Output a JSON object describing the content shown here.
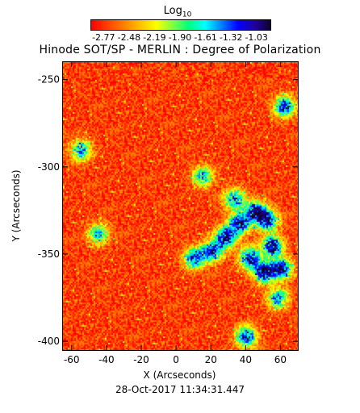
{
  "colorbar": {
    "title": "Log",
    "title_sub": "10",
    "ticks": [
      "-2.77",
      "-2.48",
      "-2.19",
      "-1.90",
      "-1.61",
      "-1.32",
      "-1.03"
    ],
    "range": [
      -2.92,
      -0.88
    ],
    "colors": [
      "#ff0000",
      "#ff4000",
      "#ff8000",
      "#ffc000",
      "#ffff00",
      "#80ff40",
      "#00ff80",
      "#00ffff",
      "#0080ff",
      "#0000ff",
      "#2000a0",
      "#100030"
    ]
  },
  "chart_data": {
    "type": "heatmap",
    "title": "Hinode SOT/SP - MERLIN : Degree of Polarization",
    "xlabel": "X (Arcseconds)",
    "ylabel": "Y (Arcseconds)",
    "xlim": [
      -65,
      70
    ],
    "ylim": [
      -405,
      -240
    ],
    "xticks": [
      -60,
      -40,
      -20,
      0,
      20,
      40,
      60
    ],
    "yticks": [
      -250,
      -300,
      -350,
      -400
    ],
    "xtick_labels": [
      "-60",
      "-40",
      "-20",
      "0",
      "20",
      "40",
      "60"
    ],
    "ytick_labels": [
      "-250",
      "-300",
      "-350",
      "-400"
    ],
    "value_range": [
      -2.92,
      -0.88
    ],
    "background_level": -2.75,
    "features": [
      {
        "x": 28,
        "y": -340,
        "level": -1.0
      },
      {
        "x": 36,
        "y": -332,
        "level": -1.05
      },
      {
        "x": 45,
        "y": -325,
        "level": -1.1
      },
      {
        "x": 52,
        "y": -330,
        "level": -1.05
      },
      {
        "x": 55,
        "y": -345,
        "level": -1.0
      },
      {
        "x": 60,
        "y": -358,
        "level": -1.0
      },
      {
        "x": 50,
        "y": -360,
        "level": -1.05
      },
      {
        "x": 42,
        "y": -352,
        "level": -1.1
      },
      {
        "x": 20,
        "y": -348,
        "level": -1.2
      },
      {
        "x": 10,
        "y": -352,
        "level": -1.3
      },
      {
        "x": 33,
        "y": -318,
        "level": -1.4
      },
      {
        "x": 15,
        "y": -305,
        "level": -1.6
      },
      {
        "x": 62,
        "y": -265,
        "level": -1.2
      },
      {
        "x": -55,
        "y": -290,
        "level": -1.5
      },
      {
        "x": 40,
        "y": -397,
        "level": -1.2
      },
      {
        "x": -45,
        "y": -338,
        "level": -1.6
      },
      {
        "x": 58,
        "y": -375,
        "level": -1.5
      }
    ]
  },
  "timestamp": "28-Oct-2017 11:34:31.447"
}
